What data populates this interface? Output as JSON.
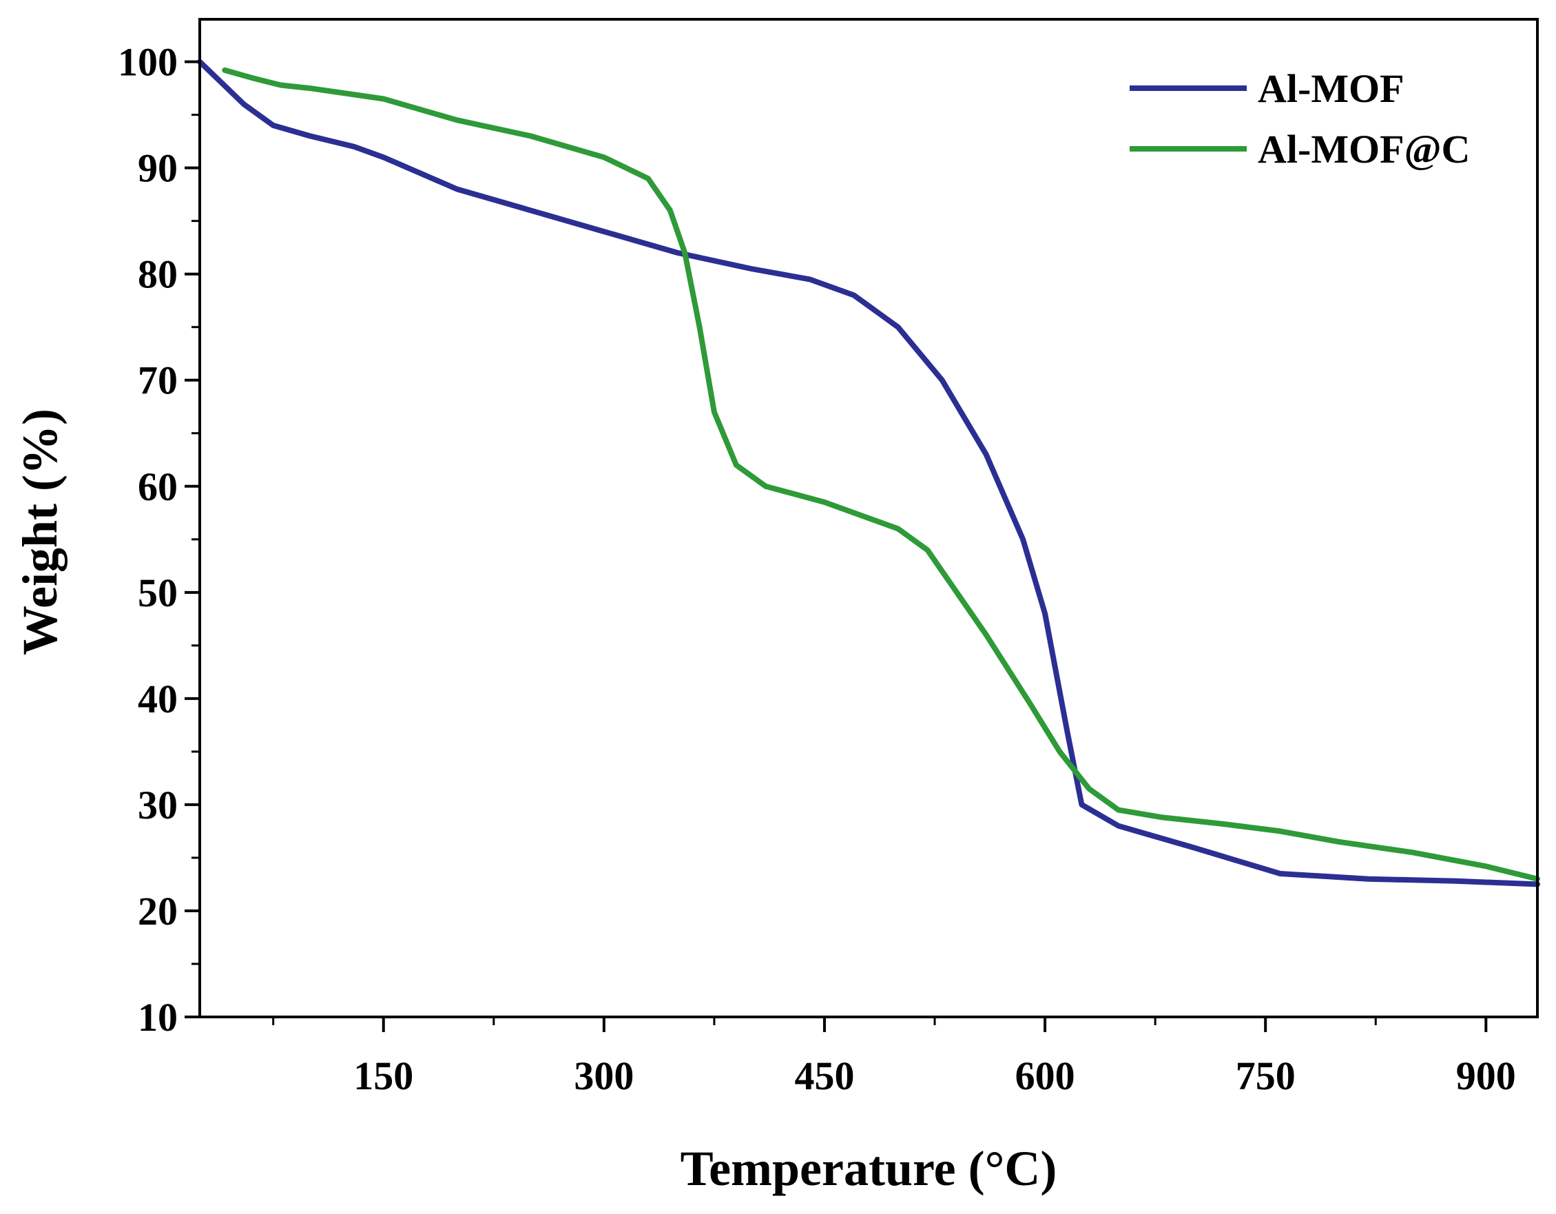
{
  "chart_data": {
    "type": "line",
    "title": "",
    "xlabel": "Temperature (°C)",
    "ylabel": "Weight (%)",
    "xlim": [
      25,
      935
    ],
    "ylim": [
      10,
      104
    ],
    "x_ticks": [
      150,
      300,
      450,
      600,
      750,
      900
    ],
    "x_tick_labels": [
      "150",
      "300",
      "450",
      "600",
      "750",
      "900"
    ],
    "y_ticks": [
      10,
      20,
      30,
      40,
      50,
      60,
      70,
      80,
      90,
      100
    ],
    "y_tick_labels": [
      "10",
      "20",
      "30",
      "40",
      "50",
      "60",
      "70",
      "80",
      "90",
      "100"
    ],
    "grid": false,
    "legend_position": "top-right",
    "series": [
      {
        "name": "Al-MOF",
        "color": "#2b2f93",
        "x": [
          25,
          40,
          55,
          75,
          100,
          130,
          150,
          200,
          250,
          300,
          350,
          400,
          440,
          470,
          500,
          530,
          560,
          585,
          600,
          615,
          625,
          650,
          700,
          760,
          820,
          880,
          935
        ],
        "y": [
          100,
          98,
          96,
          94,
          93,
          92,
          91,
          88,
          86,
          84,
          82,
          80.5,
          79.5,
          78,
          75,
          70,
          63,
          55,
          48,
          37,
          30,
          28,
          26,
          23.5,
          23,
          22.8,
          22.5
        ]
      },
      {
        "name": "Al-MOF@C",
        "color": "#2e9a38",
        "x": [
          42,
          60,
          80,
          100,
          150,
          200,
          250,
          300,
          330,
          345,
          355,
          365,
          375,
          390,
          410,
          450,
          500,
          520,
          560,
          590,
          610,
          630,
          650,
          680,
          720,
          760,
          800,
          850,
          900,
          935
        ],
        "y": [
          99.2,
          98.5,
          97.8,
          97.5,
          96.5,
          94.5,
          93,
          91,
          89,
          86,
          82,
          75,
          67,
          62,
          60,
          58.5,
          56,
          54,
          46,
          39.5,
          35,
          31.5,
          29.5,
          28.8,
          28.2,
          27.5,
          26.5,
          25.5,
          24.2,
          23
        ]
      }
    ]
  }
}
